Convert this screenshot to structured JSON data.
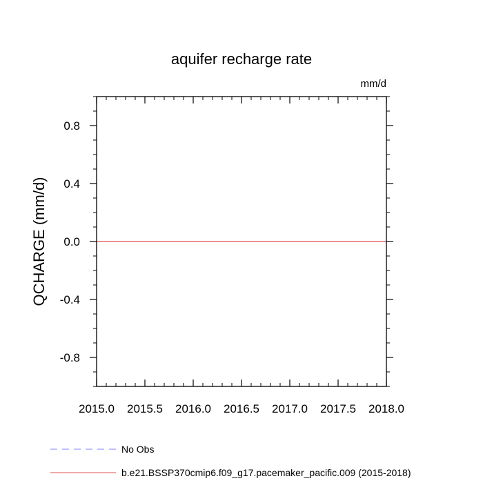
{
  "chart_data": {
    "type": "line",
    "title": "aquifer recharge rate",
    "units_label": "mm/d",
    "ylabel": "QCHARGE  (mm/d)",
    "xlabel": "",
    "xlim": [
      2015.0,
      2018.0
    ],
    "ylim": [
      -1.0,
      1.0
    ],
    "x_ticks": [
      2015.0,
      2015.5,
      2016.0,
      2016.5,
      2017.0,
      2017.5,
      2018.0
    ],
    "x_tick_labels": [
      "2015.0",
      "2015.5",
      "2016.0",
      "2016.5",
      "2017.0",
      "2017.5",
      "2018.0"
    ],
    "x_minor_step": 0.1,
    "y_ticks": [
      0.8,
      0.4,
      0.0,
      -0.4,
      -0.8
    ],
    "y_tick_labels": [
      "0.8",
      "0.4",
      "0.0",
      "-0.4",
      "-0.8"
    ],
    "y_minor_step": 0.1,
    "grid": false,
    "legend_position": "bottom-left",
    "series": [
      {
        "name": "No Obs",
        "color": "#8080ff",
        "dash": "dashed",
        "x": [],
        "y": []
      },
      {
        "name": "b.e21.BSSP370cmip6.f09_g17.pacemaker_pacific.009 (2015-2018)",
        "color": "#e05050",
        "dash": "solid",
        "x": [
          2015.0,
          2018.0
        ],
        "y": [
          0.0,
          0.0
        ]
      }
    ]
  }
}
